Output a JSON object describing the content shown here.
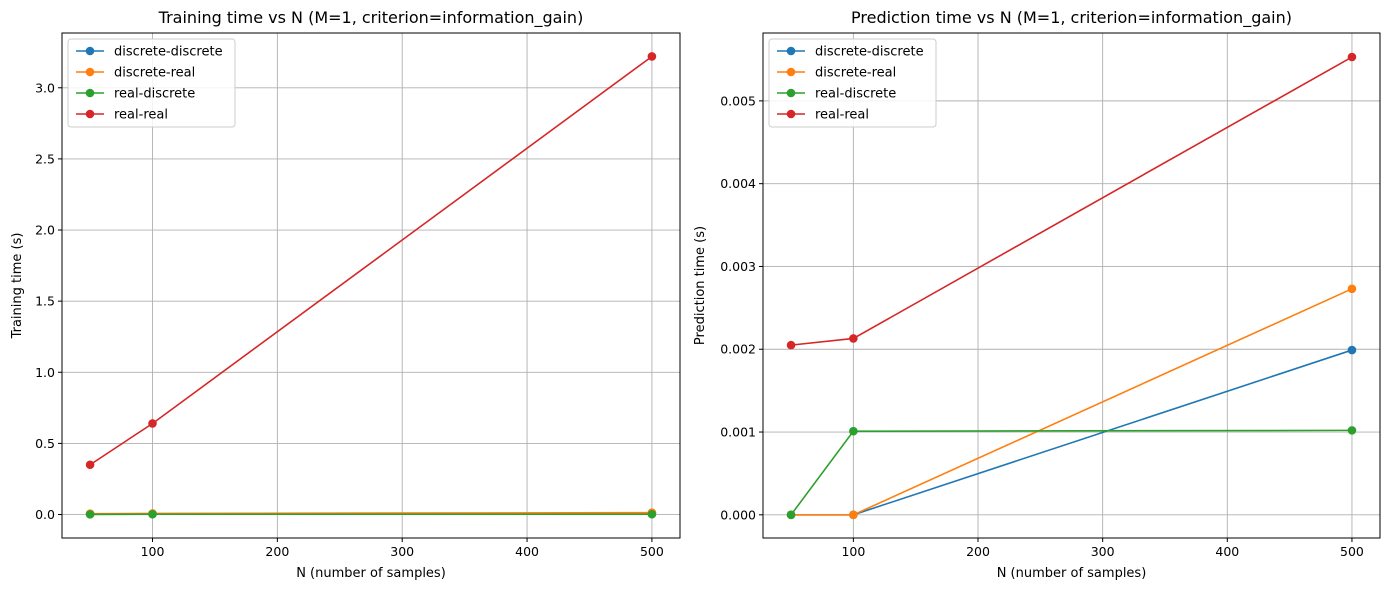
{
  "chart_data": [
    {
      "type": "line",
      "title": "Training time vs N (M=1, criterion=information_gain)",
      "xlabel": "N (number of samples)",
      "ylabel": "Training time (s)",
      "xlim": [
        27.5,
        522.5
      ],
      "ylim": [
        -0.165,
        3.385
      ],
      "xticks": [
        100,
        200,
        300,
        400,
        500
      ],
      "xtick_labels": [
        "100",
        "200",
        "300",
        "400",
        "500"
      ],
      "yticks": [
        0.0,
        0.5,
        1.0,
        1.5,
        2.0,
        2.5,
        3.0
      ],
      "ytick_labels": [
        "0.0",
        "0.5",
        "1.0",
        "1.5",
        "2.0",
        "2.5",
        "3.0"
      ],
      "grid": true,
      "legend_position": "top-left",
      "x": [
        50,
        100,
        500
      ],
      "series": [
        {
          "name": "discrete-discrete",
          "color": "#1f77b4",
          "values": [
            0.003,
            0.004,
            0.008
          ]
        },
        {
          "name": "discrete-real",
          "color": "#ff7f0e",
          "values": [
            0.006,
            0.008,
            0.013
          ]
        },
        {
          "name": "real-discrete",
          "color": "#2ca02c",
          "values": [
            0.001,
            0.002,
            0.002
          ]
        },
        {
          "name": "real-real",
          "color": "#d62728",
          "values": [
            0.35,
            0.64,
            3.22
          ]
        }
      ]
    },
    {
      "type": "line",
      "title": "Prediction time vs N (M=1, criterion=information_gain)",
      "xlabel": "N (number of samples)",
      "ylabel": "Prediction time (s)",
      "xlim": [
        27.5,
        522.5
      ],
      "ylim": [
        -0.00028,
        0.00582
      ],
      "xticks": [
        100,
        200,
        300,
        400,
        500
      ],
      "xtick_labels": [
        "100",
        "200",
        "300",
        "400",
        "500"
      ],
      "yticks": [
        0.0,
        0.001,
        0.002,
        0.003,
        0.004,
        0.005
      ],
      "ytick_labels": [
        "0.000",
        "0.001",
        "0.002",
        "0.003",
        "0.004",
        "0.005"
      ],
      "grid": true,
      "legend_position": "top-left",
      "x": [
        50,
        100,
        500
      ],
      "series": [
        {
          "name": "discrete-discrete",
          "color": "#1f77b4",
          "values": [
            0.0,
            0.0,
            0.00199
          ]
        },
        {
          "name": "discrete-real",
          "color": "#ff7f0e",
          "values": [
            0.0,
            0.0,
            0.00273
          ]
        },
        {
          "name": "real-discrete",
          "color": "#2ca02c",
          "values": [
            0.0,
            0.00101,
            0.00102
          ]
        },
        {
          "name": "real-real",
          "color": "#d62728",
          "values": [
            0.00205,
            0.00213,
            0.00553
          ]
        }
      ]
    }
  ]
}
